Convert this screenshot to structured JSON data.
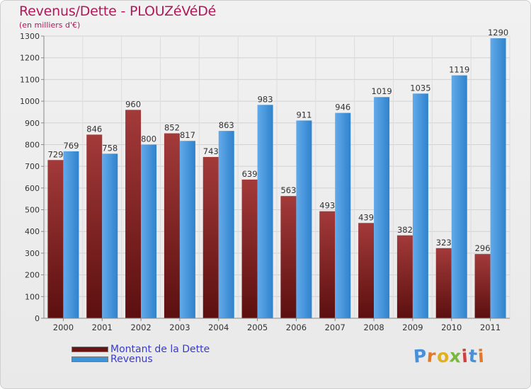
{
  "header": {
    "title": "Revenus/Dette - PLOUZéVéDé",
    "subtitle": "(en milliers d'€)"
  },
  "legend": {
    "debt_label": "Montant de la Dette",
    "revenue_label": "Revenus"
  },
  "logo": {
    "text": "Proxiti",
    "letters": [
      "P",
      "r",
      "o",
      "x",
      "i",
      "t",
      "i"
    ],
    "letter_colors": [
      "#4a90d9",
      "#e07a2a",
      "#e0b020",
      "#7ab83a",
      "#d04040",
      "#4a90d9",
      "#e07a2a"
    ]
  },
  "colors": {
    "debt": "#7a1b1b",
    "debt_light": "#a33a3a",
    "revenue": "#3f93d9",
    "revenue_light": "#6ab0ee",
    "title": "#b0185a"
  },
  "chart_data": {
    "type": "bar",
    "categories": [
      "2000",
      "2001",
      "2002",
      "2003",
      "2004",
      "2005",
      "2006",
      "2007",
      "2008",
      "2009",
      "2010",
      "2011"
    ],
    "series": [
      {
        "name": "Montant de la Dette",
        "values": [
          729,
          846,
          960,
          852,
          743,
          639,
          563,
          493,
          439,
          382,
          323,
          296
        ]
      },
      {
        "name": "Revenus",
        "values": [
          769,
          758,
          800,
          817,
          863,
          983,
          911,
          946,
          1019,
          1035,
          1119,
          1290
        ]
      }
    ],
    "ylim": [
      0,
      1300
    ],
    "yticks": [
      0,
      100,
      200,
      300,
      400,
      500,
      600,
      700,
      800,
      900,
      1000,
      1100,
      1200,
      1300
    ],
    "grid": true,
    "legend_position": "bottom-left"
  }
}
